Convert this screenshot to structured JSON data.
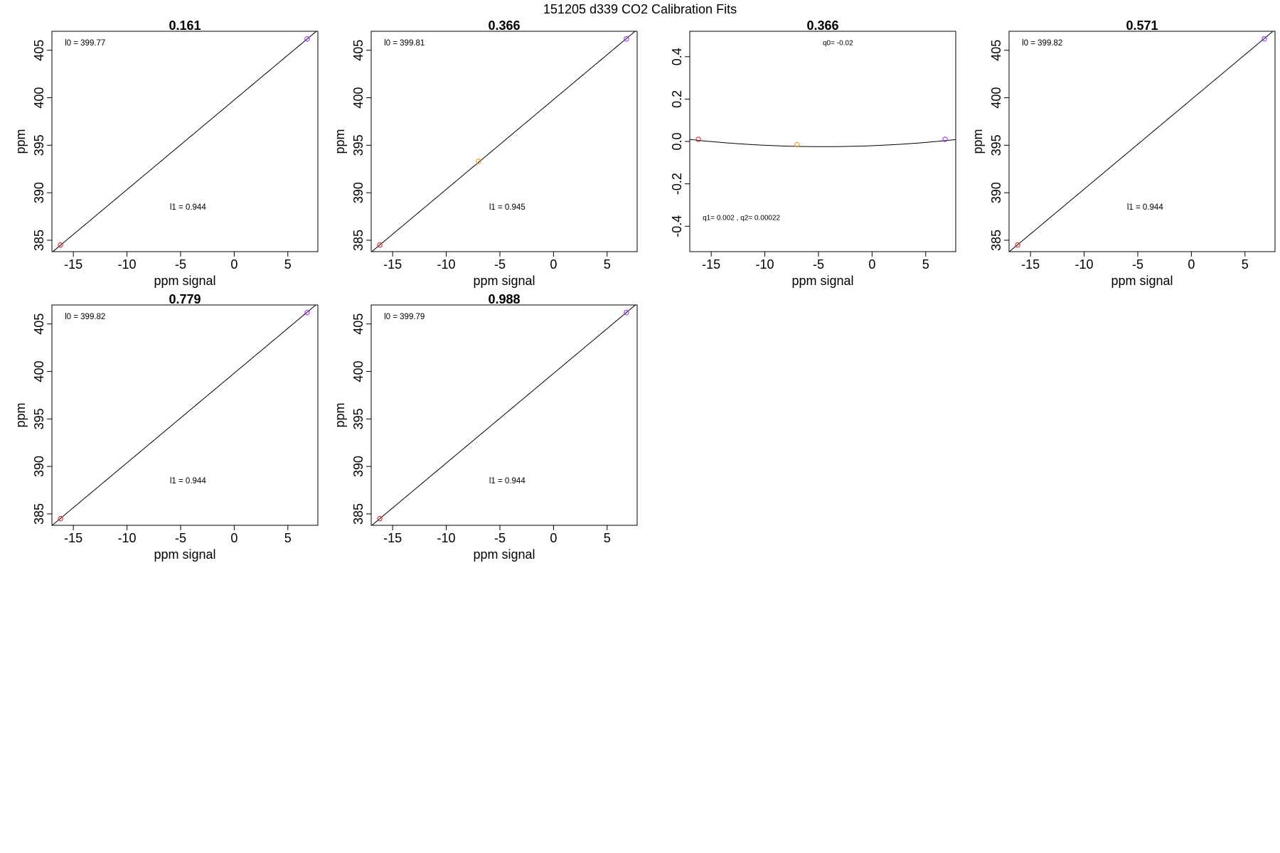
{
  "figure": {
    "title": "151205   d339   CO2 Calibration Fits"
  },
  "chart_data": [
    {
      "type": "line",
      "title": "0.161",
      "xlabel": "ppm signal",
      "ylabel": "ppm",
      "xlim": [
        -17,
        7.8
      ],
      "ylim": [
        383.8,
        407
      ],
      "x_ticks": [
        -15,
        -10,
        -5,
        0,
        5
      ],
      "y_ticks": [
        385,
        390,
        395,
        400,
        405
      ],
      "annotations": [
        {
          "text": "l0 =  399.77",
          "x": -15.8,
          "y": 405.5
        },
        {
          "text": "l1 =  0.944",
          "x": -6,
          "y": 388.2
        }
      ],
      "fit": {
        "kind": "linear",
        "intercept": 399.77,
        "slope": 0.944
      },
      "points": [
        {
          "x": -16.2,
          "y": 384.5,
          "color": "#d62728"
        },
        {
          "x": 6.8,
          "y": 406.2,
          "color": "#9b30ff"
        }
      ]
    },
    {
      "type": "line",
      "title": "0.366",
      "xlabel": "ppm signal",
      "ylabel": "ppm",
      "xlim": [
        -17,
        7.8
      ],
      "ylim": [
        383.8,
        407
      ],
      "x_ticks": [
        -15,
        -10,
        -5,
        0,
        5
      ],
      "y_ticks": [
        385,
        390,
        395,
        400,
        405
      ],
      "annotations": [
        {
          "text": "l0 =  399.81",
          "x": -15.8,
          "y": 405.5
        },
        {
          "text": "l1 =  0.945",
          "x": -6,
          "y": 388.2
        }
      ],
      "fit": {
        "kind": "linear",
        "intercept": 399.81,
        "slope": 0.945
      },
      "points": [
        {
          "x": -16.2,
          "y": 384.5,
          "color": "#d62728"
        },
        {
          "x": -7,
          "y": 393.3,
          "color": "#ff9900"
        },
        {
          "x": 6.8,
          "y": 406.2,
          "color": "#9b30ff"
        }
      ]
    },
    {
      "type": "line",
      "title": "0.366",
      "xlabel": "ppm signal",
      "ylabel": "",
      "xlim": [
        -17,
        7.8
      ],
      "ylim": [
        -0.52,
        0.52
      ],
      "x_ticks": [
        -15,
        -10,
        -5,
        0,
        5
      ],
      "y_ticks": [
        -0.4,
        -0.2,
        0.0,
        0.2,
        0.4
      ],
      "annotations": [
        {
          "text": "q0= -0.02",
          "x": -4.6,
          "y": 0.455,
          "small": true
        },
        {
          "text": "q1= 0.002 , q2= 0.00022",
          "x": -15.8,
          "y": -0.37,
          "small": true
        }
      ],
      "fit": {
        "kind": "quadratic",
        "q0": -0.02,
        "q1": 0.002,
        "q2": 0.00022
      },
      "points": [
        {
          "x": -16.2,
          "y": 0.01,
          "color": "#d62728"
        },
        {
          "x": -7,
          "y": -0.015,
          "color": "#ff9900"
        },
        {
          "x": 6.8,
          "y": 0.01,
          "color": "#9b30ff"
        }
      ]
    },
    {
      "type": "line",
      "title": "0.571",
      "xlabel": "ppm signal",
      "ylabel": "ppm",
      "xlim": [
        -17,
        7.8
      ],
      "ylim": [
        383.8,
        407
      ],
      "x_ticks": [
        -15,
        -10,
        -5,
        0,
        5
      ],
      "y_ticks": [
        385,
        390,
        395,
        400,
        405
      ],
      "annotations": [
        {
          "text": "l0 =  399.82",
          "x": -15.8,
          "y": 405.5
        },
        {
          "text": "l1 =  0.944",
          "x": -6,
          "y": 388.2
        }
      ],
      "fit": {
        "kind": "linear",
        "intercept": 399.82,
        "slope": 0.944
      },
      "points": [
        {
          "x": -16.2,
          "y": 384.5,
          "color": "#d62728"
        },
        {
          "x": 6.8,
          "y": 406.2,
          "color": "#9b30ff"
        }
      ]
    },
    {
      "type": "line",
      "title": "0.779",
      "xlabel": "ppm signal",
      "ylabel": "ppm",
      "xlim": [
        -17,
        7.8
      ],
      "ylim": [
        383.8,
        407
      ],
      "x_ticks": [
        -15,
        -10,
        -5,
        0,
        5
      ],
      "y_ticks": [
        385,
        390,
        395,
        400,
        405
      ],
      "annotations": [
        {
          "text": "l0 =  399.82",
          "x": -15.8,
          "y": 405.5
        },
        {
          "text": "l1 =  0.944",
          "x": -6,
          "y": 388.2
        }
      ],
      "fit": {
        "kind": "linear",
        "intercept": 399.82,
        "slope": 0.944
      },
      "points": [
        {
          "x": -16.2,
          "y": 384.5,
          "color": "#d62728"
        },
        {
          "x": 6.8,
          "y": 406.2,
          "color": "#9b30ff"
        }
      ]
    },
    {
      "type": "line",
      "title": "0.988",
      "xlabel": "ppm signal",
      "ylabel": "ppm",
      "xlim": [
        -17,
        7.8
      ],
      "ylim": [
        383.8,
        407
      ],
      "x_ticks": [
        -15,
        -10,
        -5,
        0,
        5
      ],
      "y_ticks": [
        385,
        390,
        395,
        400,
        405
      ],
      "annotations": [
        {
          "text": "l0 =  399.79",
          "x": -15.8,
          "y": 405.5
        },
        {
          "text": "l1 =  0.944",
          "x": -6,
          "y": 388.2
        }
      ],
      "fit": {
        "kind": "linear",
        "intercept": 399.79,
        "slope": 0.944
      },
      "points": [
        {
          "x": -16.2,
          "y": 384.5,
          "color": "#d62728"
        },
        {
          "x": 6.8,
          "y": 406.2,
          "color": "#9b30ff"
        }
      ]
    }
  ]
}
